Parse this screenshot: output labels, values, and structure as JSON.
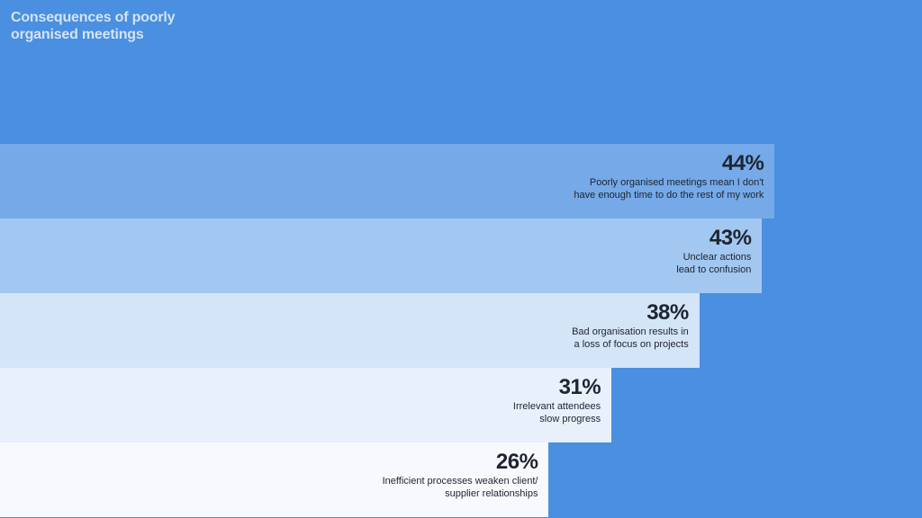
{
  "chart_data": {
    "type": "bar",
    "orientation": "horizontal",
    "title": "Consequences of poorly\norganised meetings",
    "categories": [
      "Poorly organised meetings mean I don't\nhave enough time to do the rest of my work",
      "Unclear actions\nlead to confusion",
      "Bad organisation results in\na loss of focus on projects",
      "Irrelevant attendees\nslow progress",
      "Inefficient processes weaken client/\nsupplier relationships"
    ],
    "values": [
      44,
      43,
      38,
      31,
      26
    ],
    "value_labels": [
      "44%",
      "43%",
      "38%",
      "31%",
      "26%"
    ],
    "colors": [
      "#75a9e8",
      "#a2c7f0",
      "#d4e5f8",
      "#e8f0fb",
      "#f7f9fc"
    ],
    "background": "#4a8fe0"
  }
}
